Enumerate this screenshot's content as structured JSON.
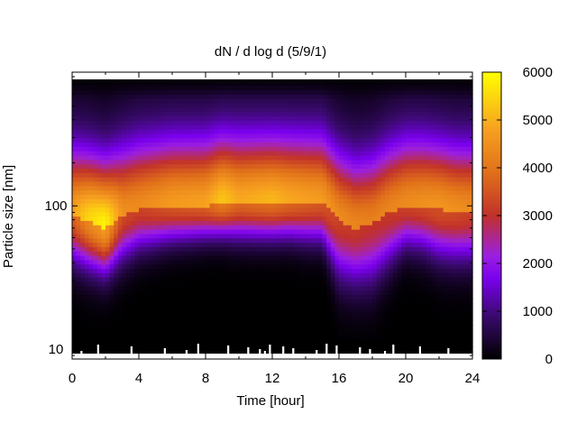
{
  "chart_data": {
    "type": "heatmap",
    "title": "dN / d log d (5/9/1)",
    "xlabel": "Time [hour]",
    "ylabel": "Particle size [nm]",
    "xlim": [
      0,
      24
    ],
    "ylim": [
      8.5,
      860
    ],
    "y_scale": "log",
    "x_ticks": [
      0,
      4,
      8,
      12,
      16,
      20,
      24
    ],
    "y_ticks": [
      10,
      100
    ],
    "colorbar": {
      "min": 0,
      "max": 6000,
      "ticks": [
        0,
        1000,
        2000,
        3000,
        4000,
        5000,
        6000
      ],
      "colors": [
        "#000000",
        "#3a0a6e",
        "#7a00ee",
        "#9b1fe0",
        "#c1312a",
        "#e0701a",
        "#f7a020",
        "#ffff00"
      ]
    },
    "size_distribution": [
      {
        "t": 0,
        "peak_nm": 85,
        "peak_value": 3600,
        "lower_edge_nm": 40
      },
      {
        "t": 1,
        "peak_nm": 78,
        "peak_value": 4300,
        "lower_edge_nm": 36
      },
      {
        "t": 2,
        "peak_nm": 70,
        "peak_value": 4700,
        "lower_edge_nm": 33
      },
      {
        "t": 3,
        "peak_nm": 85,
        "peak_value": 3300,
        "lower_edge_nm": 40
      },
      {
        "t": 4,
        "peak_nm": 95,
        "peak_value": 3200,
        "lower_edge_nm": 48
      },
      {
        "t": 6,
        "peak_nm": 100,
        "peak_value": 3500,
        "lower_edge_nm": 55
      },
      {
        "t": 8,
        "peak_nm": 100,
        "peak_value": 3600,
        "lower_edge_nm": 58
      },
      {
        "t": 9,
        "peak_nm": 105,
        "peak_value": 4100,
        "lower_edge_nm": 60
      },
      {
        "t": 10,
        "peak_nm": 105,
        "peak_value": 3700,
        "lower_edge_nm": 58
      },
      {
        "t": 11,
        "peak_nm": 105,
        "peak_value": 3800,
        "lower_edge_nm": 58
      },
      {
        "t": 12,
        "peak_nm": 105,
        "peak_value": 3900,
        "lower_edge_nm": 58
      },
      {
        "t": 13,
        "peak_nm": 105,
        "peak_value": 3700,
        "lower_edge_nm": 58
      },
      {
        "t": 14,
        "peak_nm": 105,
        "peak_value": 3600,
        "lower_edge_nm": 56
      },
      {
        "t": 15,
        "peak_nm": 105,
        "peak_value": 3500,
        "lower_edge_nm": 55
      },
      {
        "t": 16,
        "peak_nm": 80,
        "peak_value": 3200,
        "lower_edge_nm": 30
      },
      {
        "t": 17,
        "peak_nm": 70,
        "peak_value": 3100,
        "lower_edge_nm": 27
      },
      {
        "t": 18,
        "peak_nm": 75,
        "peak_value": 3000,
        "lower_edge_nm": 28
      },
      {
        "t": 19,
        "peak_nm": 90,
        "peak_value": 3100,
        "lower_edge_nm": 38
      },
      {
        "t": 20,
        "peak_nm": 100,
        "peak_value": 3200,
        "lower_edge_nm": 50
      },
      {
        "t": 21,
        "peak_nm": 100,
        "peak_value": 3300,
        "lower_edge_nm": 48
      },
      {
        "t": 22,
        "peak_nm": 95,
        "peak_value": 3400,
        "lower_edge_nm": 42
      },
      {
        "t": 23,
        "peak_nm": 90,
        "peak_value": 3300,
        "lower_edge_nm": 40
      },
      {
        "t": 24,
        "peak_nm": 90,
        "peak_value": 3200,
        "lower_edge_nm": 40
      }
    ],
    "missing_data_spikes_hours": [
      0.5,
      1.5,
      3.5,
      5.5,
      6.8,
      7.5,
      9.3,
      10.5,
      11.2,
      11.5,
      11.8,
      12.6,
      13.2,
      14.6,
      15.2,
      15.8,
      17.2,
      17.8,
      18.7,
      19.2,
      20.8,
      22.5
    ]
  }
}
